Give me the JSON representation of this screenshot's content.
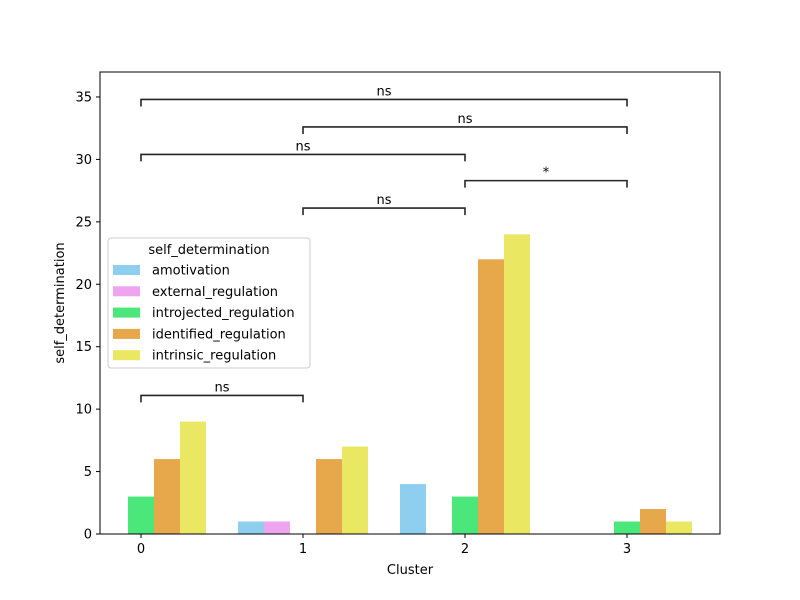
{
  "chart_data": {
    "type": "bar",
    "xlabel": "Cluster",
    "ylabel": "self_determination",
    "categories": [
      "0",
      "1",
      "2",
      "3"
    ],
    "x_ticks": [
      "0",
      "1",
      "2",
      "3"
    ],
    "y_ticks": [
      "0",
      "5",
      "10",
      "15",
      "20",
      "25",
      "30",
      "35"
    ],
    "ylim": [
      0,
      37
    ],
    "legend": {
      "title": "self_determination",
      "placement": "center-left"
    },
    "series": [
      {
        "name": "amotivation",
        "color": "#8ecfef",
        "values": [
          0,
          1,
          4,
          0
        ]
      },
      {
        "name": "external_regulation",
        "color": "#efa4ef",
        "values": [
          0,
          1,
          0,
          0
        ]
      },
      {
        "name": "introjected_regulation",
        "color": "#4be77a",
        "values": [
          3,
          0,
          3,
          1
        ]
      },
      {
        "name": "identified_regulation",
        "color": "#e6a84a",
        "values": [
          6,
          6,
          22,
          2
        ]
      },
      {
        "name": "intrinsic_regulation",
        "color": "#eae762",
        "values": [
          9,
          7,
          24,
          1
        ]
      }
    ],
    "annotations": [
      {
        "from": "0",
        "to": "1",
        "y": 11.1,
        "label": "ns"
      },
      {
        "from": "1",
        "to": "2",
        "y": 26.1,
        "label": "ns"
      },
      {
        "from": "2",
        "to": "3",
        "y": 28.3,
        "label": "*"
      },
      {
        "from": "0",
        "to": "2",
        "y": 30.4,
        "label": "ns"
      },
      {
        "from": "1",
        "to": "3",
        "y": 32.6,
        "label": "ns"
      },
      {
        "from": "0",
        "to": "3",
        "y": 34.8,
        "label": "ns"
      }
    ],
    "grid": false
  }
}
